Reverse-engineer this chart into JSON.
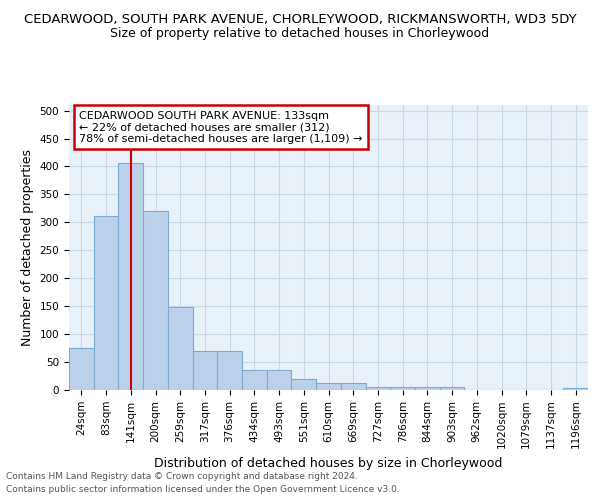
{
  "title": "CEDARWOOD, SOUTH PARK AVENUE, CHORLEYWOOD, RICKMANSWORTH, WD3 5DY",
  "subtitle": "Size of property relative to detached houses in Chorleywood",
  "xlabel": "Distribution of detached houses by size in Chorleywood",
  "ylabel": "Number of detached properties",
  "footer_line1": "Contains HM Land Registry data © Crown copyright and database right 2024.",
  "footer_line2": "Contains public sector information licensed under the Open Government Licence v3.0.",
  "categories": [
    "24sqm",
    "83sqm",
    "141sqm",
    "200sqm",
    "259sqm",
    "317sqm",
    "376sqm",
    "434sqm",
    "493sqm",
    "551sqm",
    "610sqm",
    "669sqm",
    "727sqm",
    "786sqm",
    "844sqm",
    "903sqm",
    "962sqm",
    "1020sqm",
    "1079sqm",
    "1137sqm",
    "1196sqm"
  ],
  "values": [
    75,
    312,
    407,
    320,
    149,
    70,
    70,
    36,
    36,
    20,
    13,
    13,
    6,
    6,
    6,
    5,
    0,
    0,
    0,
    0,
    4
  ],
  "bar_color": "#bdd0e9",
  "bar_edge_color": "#7aadd4",
  "vline_x_index": 2,
  "vline_color": "#cc0000",
  "annotation_line1": "CEDARWOOD SOUTH PARK AVENUE: 133sqm",
  "annotation_line2": "← 22% of detached houses are smaller (312)",
  "annotation_line3": "78% of semi-detached houses are larger (1,109) →",
  "annotation_box_color": "#cc0000",
  "annotation_bg_color": "#ffffff",
  "ylim": [
    0,
    510
  ],
  "yticks": [
    0,
    50,
    100,
    150,
    200,
    250,
    300,
    350,
    400,
    450,
    500
  ],
  "bg_color": "#ffffff",
  "grid_color": "#c8d8e8",
  "axes_bg_color": "#e8f0f8",
  "title_fontsize": 9.5,
  "subtitle_fontsize": 9,
  "axis_label_fontsize": 9,
  "tick_fontsize": 7.5,
  "footer_fontsize": 6.5
}
